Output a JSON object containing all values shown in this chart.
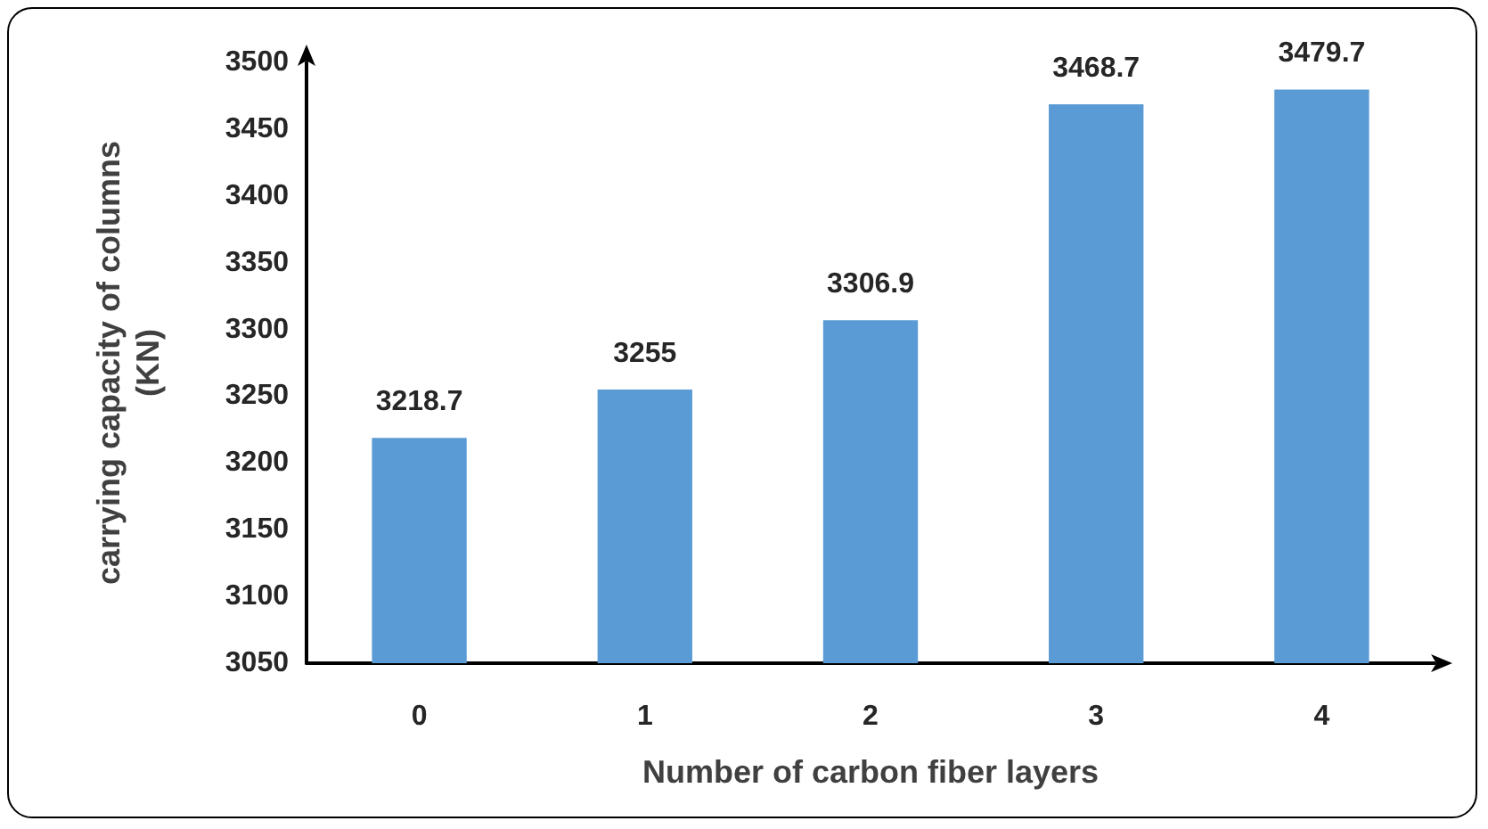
{
  "chart_data": {
    "type": "bar",
    "xlabel": "Number of carbon fiber layers",
    "ylabel": "carrying capacity of columns\n(KN)",
    "categories": [
      "0",
      "1",
      "2",
      "3",
      "4"
    ],
    "values": [
      3218.7,
      3255,
      3306.9,
      3468.7,
      3479.7
    ],
    "color": "#5b9bd5",
    "ylim": [
      3050,
      3500
    ],
    "yticks": [
      3050,
      3100,
      3150,
      3200,
      3250,
      3300,
      3350,
      3400,
      3450,
      3500
    ],
    "data_labels": true,
    "grid": false
  }
}
